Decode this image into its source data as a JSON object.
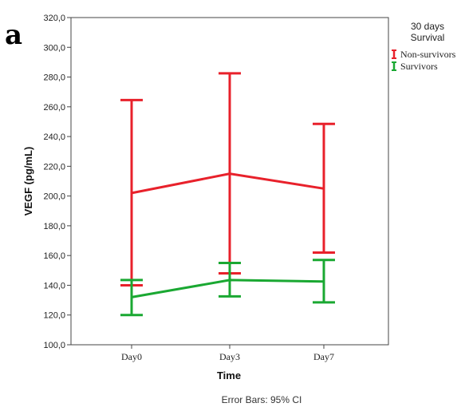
{
  "panel_label": "a",
  "chart_data": {
    "type": "line",
    "categories": [
      "Day0",
      "Day3",
      "Day7"
    ],
    "ylabel": "VEGF (pg/mL)",
    "xlabel": "Time",
    "ylim": [
      100,
      320
    ],
    "yticks": [
      "100,0",
      "120,0",
      "140,0",
      "160,0",
      "180,0",
      "200,0",
      "220,0",
      "240,0",
      "260,0",
      "280,0",
      "300,0",
      "320,0"
    ],
    "ytick_values": [
      100,
      120,
      140,
      160,
      180,
      200,
      220,
      240,
      260,
      280,
      300,
      320
    ],
    "legend": {
      "title_line1": "30 days",
      "title_line2": "Survival",
      "placement": "top-right outside plot"
    },
    "series": [
      {
        "name": "Non-survivors",
        "color": "#e8212b",
        "mean": [
          202,
          215,
          205
        ],
        "ci_low": [
          140,
          148,
          162
        ],
        "ci_high": [
          264.5,
          282.5,
          248.5
        ]
      },
      {
        "name": "Survivors",
        "color": "#1aa832",
        "mean": [
          132,
          143.5,
          142.5
        ],
        "ci_low": [
          120,
          132.5,
          128.5
        ],
        "ci_high": [
          143.5,
          155,
          157
        ]
      }
    ],
    "footnote": "Error Bars: 95% CI",
    "grid": false
  }
}
